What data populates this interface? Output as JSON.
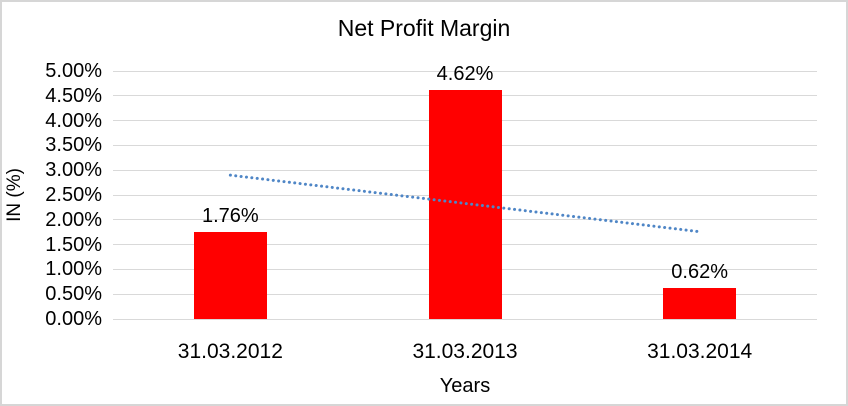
{
  "chart": {
    "background": "#ffffff",
    "border_color": "#d6d6d6",
    "text_color": "#000000"
  },
  "chart_data": {
    "type": "bar",
    "title": "Net Profit Margin",
    "xlabel": "Years",
    "ylabel": "IN (%)",
    "categories": [
      "31.03.2012",
      "31.03.2013",
      "31.03.2014"
    ],
    "values": [
      1.76,
      4.62,
      0.62
    ],
    "data_labels": [
      "1.76%",
      "4.62%",
      "0.62%"
    ],
    "ylim": [
      0,
      5
    ],
    "yticks": [
      {
        "value": 0.0,
        "label": "0.00%"
      },
      {
        "value": 0.5,
        "label": "0.50%"
      },
      {
        "value": 1.0,
        "label": "1.00%"
      },
      {
        "value": 1.5,
        "label": "1.50%"
      },
      {
        "value": 2.0,
        "label": "2.00%"
      },
      {
        "value": 2.5,
        "label": "2.50%"
      },
      {
        "value": 3.0,
        "label": "3.00%"
      },
      {
        "value": 3.5,
        "label": "3.50%"
      },
      {
        "value": 4.0,
        "label": "4.00%"
      },
      {
        "value": 4.5,
        "label": "4.50%"
      },
      {
        "value": 5.0,
        "label": "5.00%"
      }
    ],
    "grid": "horizontal",
    "gridline_color": "#d9d9d9",
    "legend": "none",
    "bar_color": "#ff0000",
    "trendline": {
      "type": "linear",
      "style": "round-dot",
      "color": "#4f86c6",
      "start_value": 2.9,
      "end_value": 1.76
    }
  }
}
